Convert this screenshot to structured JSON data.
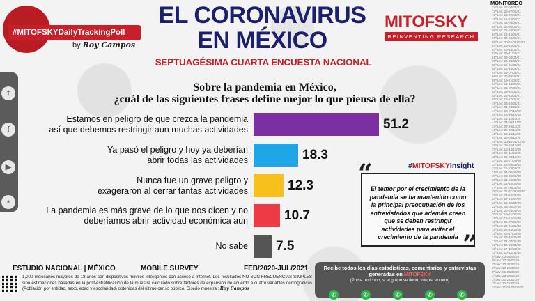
{
  "header": {
    "hashtag": "#MITOFSKYDailyTrackingPoll",
    "by": "by",
    "signature": "Roy Campos",
    "title_line1": "EL CORONAVIRUS",
    "title_line2": "EN MÉXICO",
    "subtitle": "SEPTUAGÉSIMA CUARTA ENCUESTA NACIONAL",
    "logo": "MITOFSKY",
    "logo_tagline": "REINVENTING RESEARCH"
  },
  "social_icons": [
    "twitter-icon",
    "facebook-icon",
    "youtube-icon",
    "mitofsky-seal-icon"
  ],
  "question": {
    "line1": "Sobre la pandemia en México,",
    "line2": "¿cuál de las siguientes frases define mejor lo que piensa de ella?"
  },
  "chart_data": {
    "type": "bar",
    "orientation": "horizontal",
    "categories": [
      [
        "Estamos en peligro de que crezca la pandemia",
        "así que debemos restringir aun muchas actividades"
      ],
      [
        "Ya pasó el peligro y hoy ya deberían",
        "abrir todas las actividades"
      ],
      [
        "Nunca fue un grave peligro y",
        "exageraron al cerrar tantas actividades"
      ],
      [
        "La pandemia es más grave de lo que nos dicen y no",
        "deberíamos abrir actividad económica aun"
      ],
      [
        "No sabe"
      ]
    ],
    "values": [
      51.2,
      18.3,
      12.3,
      10.7,
      7.5
    ],
    "value_labels": [
      "51.2",
      "18.3",
      "12.3",
      "10.7",
      "7.5"
    ],
    "colors": [
      "#7b2fa3",
      "#1fa6e6",
      "#f5c11a",
      "#ee3a45",
      "#555555"
    ],
    "xlim": [
      0,
      51.2
    ]
  },
  "insight": {
    "tag_hash": "#",
    "tag_brand": "MITOFSKY",
    "tag_rest": "Insight",
    "text": "El temor por el crecimiento de la pandemia  se ha mantenido como la principal preocupación de los entrevistados que además creen que se deben restringir actividades para evitar el crecimiento de la pandemia"
  },
  "monitoreo": {
    "title": "MONITOREO",
    "lines": [
      "74ª Lev: 02-04/07/21",
      "73ª Lev: 25-27/06/21",
      "72ª Lev: 18-20/06/21",
      "71ª Lev: 11-13/06/21",
      "70ª Lev: 04-06/06/21",
      "69ª Lev: 28-30/05/21",
      "68ª Lev: 21-23/05/21",
      "67ª Lev: 14-16/05/21",
      "66ª Lev: 07-09/05/21",
      "65ª Lev: 30/04-02/05/21",
      "64ª Lev: 23-25/04/21",
      "63ª Lev: 16-18/04/21",
      "62ª Lev: 09-11/04/21",
      "61ª Lev: 02-04/04/21",
      "60ª Lev: 26-28/03/21",
      "59ª Lev: 19-21/03/21",
      "58ª Lev: 12-14/03/21",
      "57ª Lev: 05-07/03/21",
      "56ª Lev: 26-28/02/21",
      "55ª Lev: 19-21/02/21",
      "54ª Lev: 12-14/02/21",
      "53ª Lev: 05-07/02/21",
      "52ª Lev: 29-31/01/21",
      "51ª Lev: 22-24/01/21",
      "50ª Lev: 15-17/01/21",
      "49ª Lev: 08-10/01/21",
      "48ª Lev: 01-03/01/21",
      "47ª Lev: 25-27/12/20",
      "46ª Lev: 18-20/12/20",
      "45ª Lev: 11-13/12/20",
      "44ª Lev: 04-06/12/20",
      "43ª Lev: 27-29/11/20",
      "42ª Lev: 20-22/11/20",
      "41ª Lev: 13-15/11/20",
      "40ª Lev: 06-08/11/20",
      "39ª Lev: 30/10-01/11/20",
      "38ª Lev: 23-25/10/20",
      "37ª Lev: 16-18/10/20",
      "36ª Lev: 09-11/10/20",
      "35ª Lev: 02-04/10/20",
      "34ª Lev: 25-27/09/20",
      "33ª Lev: 18-20/09/20",
      "32ª Lev: 11-13/09/20",
      "31ª Lev: 04-06/09/20",
      "30ª Lev: 28-30/08/20",
      "29ª Lev: 21-23/08/20",
      "28ª Lev: 14-16/08/20",
      "27ª Lev: 07-09/08/20",
      "26ª Lev: 31/07-02/08/20",
      "25ª Lev: 24-26/07/20",
      "24ª Lev: 17-19/07/20",
      "23ª Lev: 10-12/07/20",
      "22ª Lev: 03-05/07/20",
      "21ª Lev: 26-28/06/20",
      "20ª Lev: 19-21/06/20",
      "19ª Lev: 12-14/06/20",
      "18ª Lev: 05-07/06/20",
      "17ª Lev: 29-31/05/20",
      "16ª Lev: 22-24/05/20",
      "15ª Lev: 15-17/05/20",
      "14ª Lev: 08-10/05/20",
      "13ª Lev: 01-03/05/20",
      "12ª Lev: 24-26/04/20",
      "11ª Lev: 17-19/04/20",
      "10ª Lev: 10-12/04/20",
      "9ª Lev: 03-05/04/20",
      "8ª Lev: 27-29/03/20",
      "7ª Lev: 20-22/03/20",
      "6ª Lev: 13-15/03/20",
      "5ª Lev: 06-08/03/20",
      "4ª Lev: 28-29/02/20",
      "3ª Lev: 21-22/02/20",
      "2ª Lev: 14-15/02/20",
      "1ª Lev: 31/01-02/02/20"
    ]
  },
  "footer": {
    "study": "ESTUDIO NACIONAL | MÉXICO",
    "mode": "MOBILE SURVEY",
    "dates": "FEB/2020-JUL/2021",
    "method": "1,000 mexicanos mayores de 18 años con dispositivos móviles inteligentes con acceso a internet. Los resultados NO SON FRECUENCIAS SIMPLES sino estimaciones basadas en la post-estratificación de la muestra calculado sobre factores de expansión de acuerdo a cuatro variables demográficas (Población por entidad, sexo, edad y escolaridad) obtenidas del último censo público. Diseño muestral:",
    "signature": "Roy Campos",
    "promo_line1": "Recibe todos los días estadísticas, comentarios y entrevistas",
    "promo_line2a": "generadas en ",
    "promo_brand": "MITOFSKY",
    "promo_line3": "(Pulsa un icono, si el grupo se llenó, intenta en otro)"
  }
}
